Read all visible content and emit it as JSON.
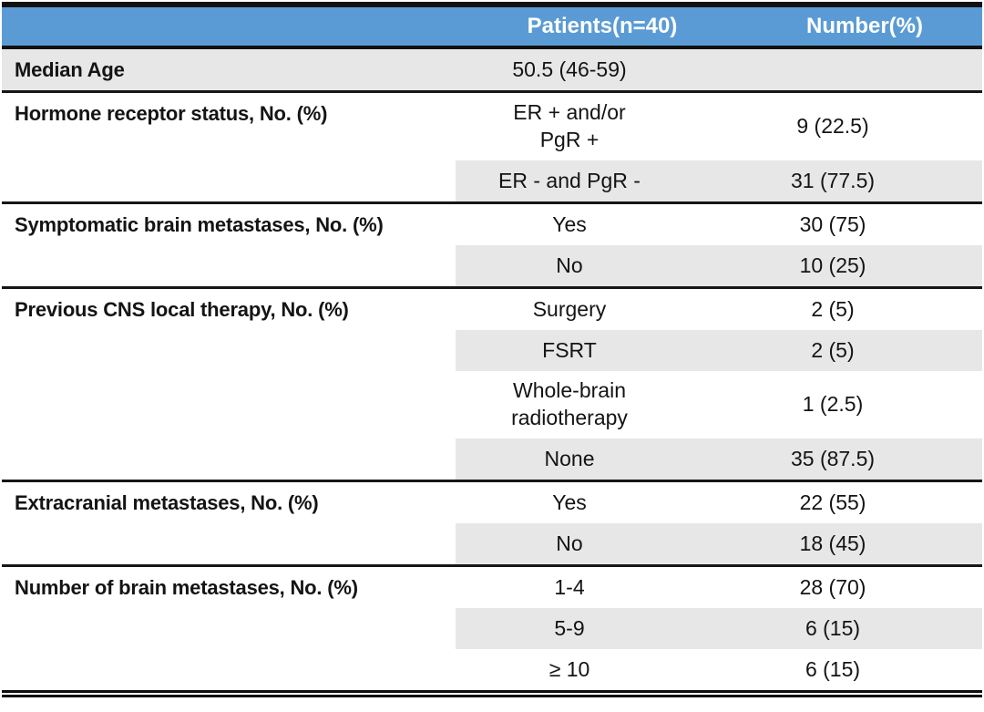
{
  "table": {
    "header": {
      "patients_label": "Patients(n=40)",
      "number_label": "Number(%)"
    },
    "sections": [
      {
        "label": "Median Age",
        "rows": [
          {
            "value": "50.5 (46-59)",
            "number": "",
            "shaded": true,
            "full_shade": true
          }
        ]
      },
      {
        "label": "Hormone receptor status, No. (%)",
        "rows": [
          {
            "value": "ER + and/or\nPgR +",
            "number": "9 (22.5)",
            "shaded": false,
            "tall": true
          },
          {
            "value": "ER - and PgR -",
            "number": "31 (77.5)",
            "shaded": true
          }
        ]
      },
      {
        "label": "Symptomatic brain metastases, No. (%)",
        "rows": [
          {
            "value": "Yes",
            "number": "30 (75)",
            "shaded": false
          },
          {
            "value": "No",
            "number": "10 (25)",
            "shaded": true
          }
        ]
      },
      {
        "label": "Previous CNS local therapy, No. (%)",
        "rows": [
          {
            "value": "Surgery",
            "number": "2 (5)",
            "shaded": false
          },
          {
            "value": "FSRT",
            "number": "2 (5)",
            "shaded": true
          },
          {
            "value": "Whole-brain\nradiotherapy",
            "number": "1 (2.5)",
            "shaded": false,
            "tall": true
          },
          {
            "value": "None",
            "number": "35 (87.5)",
            "shaded": true
          }
        ]
      },
      {
        "label": "Extracranial metastases, No. (%)",
        "rows": [
          {
            "value": "Yes",
            "number": "22 (55)",
            "shaded": false
          },
          {
            "value": "No",
            "number": "18 (45)",
            "shaded": true
          }
        ]
      },
      {
        "label": "Number of brain metastases, No. (%)",
        "rows": [
          {
            "value": "1-4",
            "number": "28 (70)",
            "shaded": false
          },
          {
            "value": "5-9",
            "number": "6 (15)",
            "shaded": true
          },
          {
            "value": "≥ 10",
            "number": "6 (15)",
            "shaded": false
          }
        ]
      }
    ],
    "colors": {
      "header_bg": "#5B9BD5",
      "header_text": "#FFFFFF",
      "shade": "#E7E7E7",
      "rule": "#111111",
      "text": "#141414"
    }
  }
}
